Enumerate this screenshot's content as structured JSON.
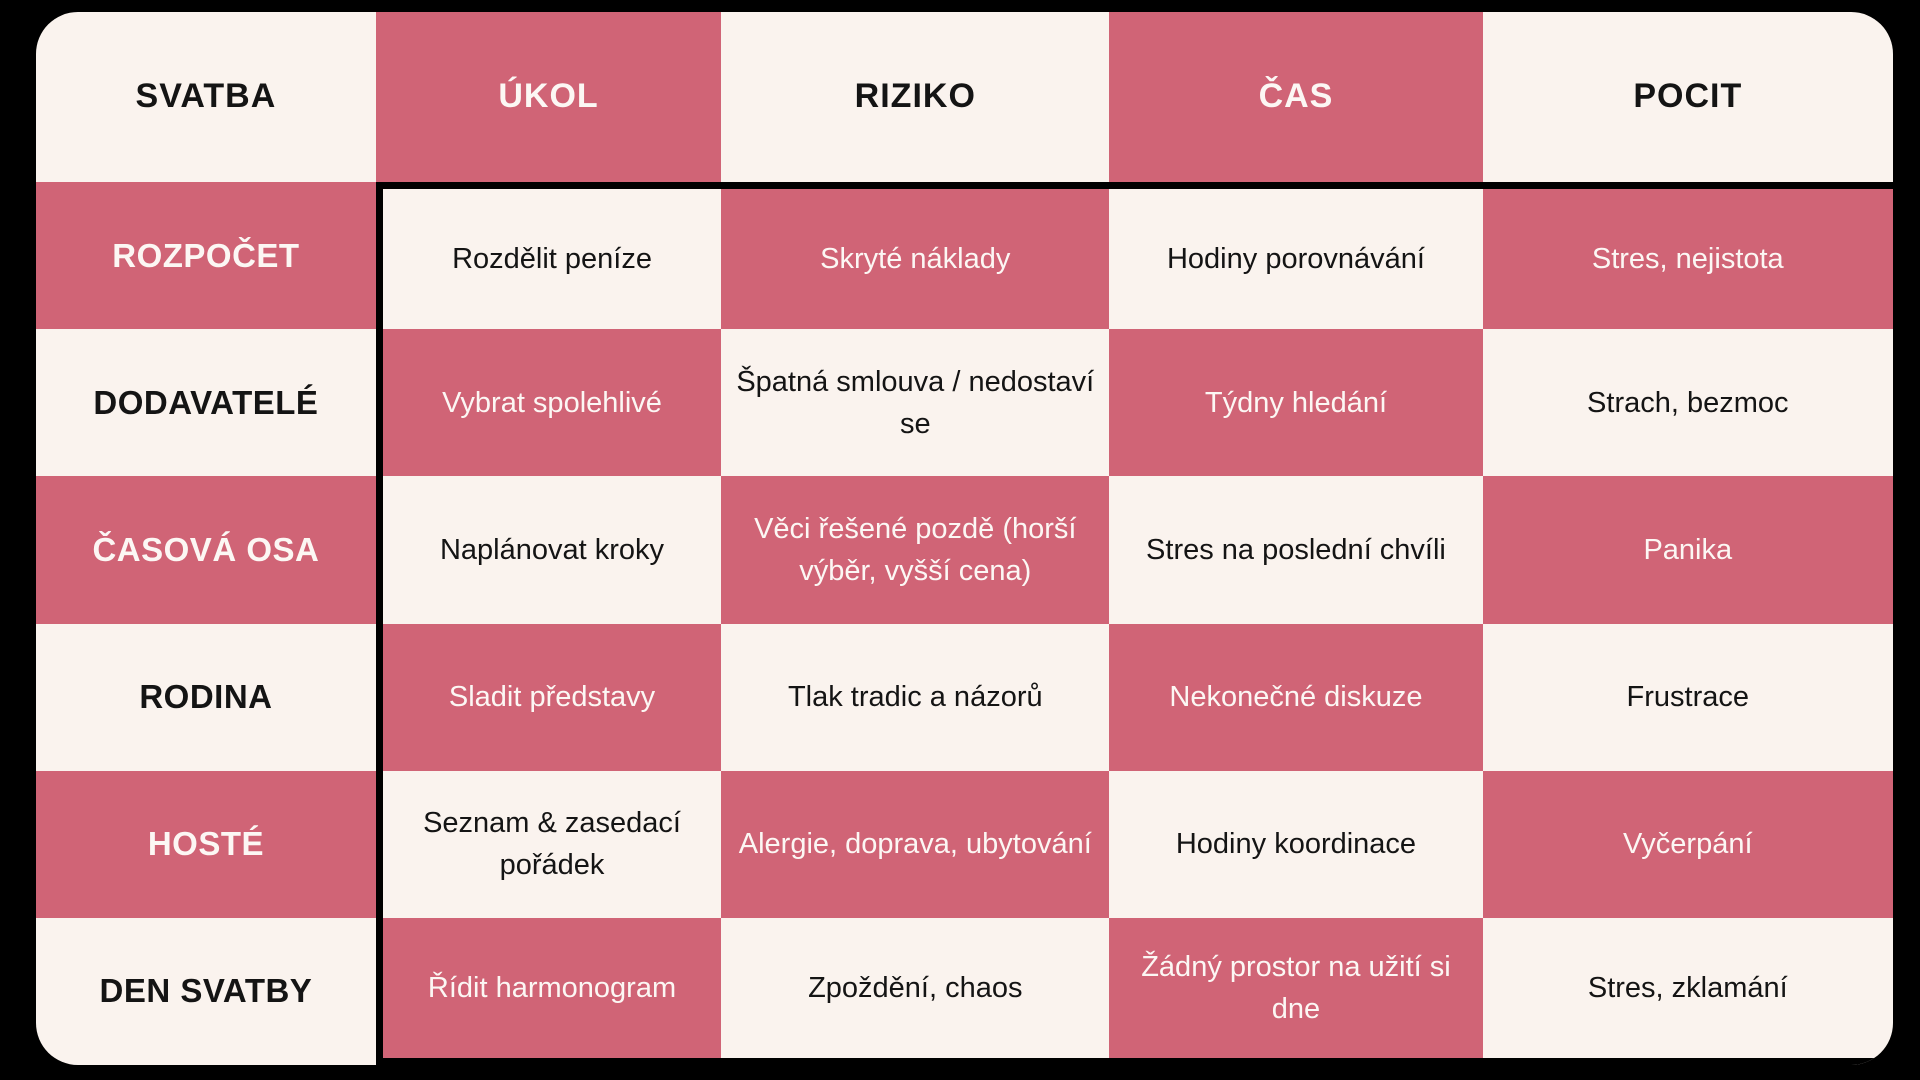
{
  "colors": {
    "page_background": "#000000",
    "rose": "#d06476",
    "cream": "#faf3ee",
    "divider_line": "#000000",
    "text_on_cream": "#141414",
    "text_on_rose": "#fcf7f4"
  },
  "chart_data": {
    "type": "table",
    "title": "",
    "columns": [
      "SVATBA",
      "ÚKOL",
      "RIZIKO",
      "ČAS",
      "POCIT"
    ],
    "rows": [
      [
        "ROZPOČET",
        "Rozdělit peníze",
        "Skryté náklady",
        "Hodiny porovnávání",
        "Stres, nejistota"
      ],
      [
        "DODAVATELÉ",
        "Vybrat spolehlivé",
        "Špatná smlouva / nedostaví se",
        "Týdny hledání",
        "Strach, bezmoc"
      ],
      [
        "ČASOVÁ OSA",
        "Naplánovat kroky",
        "Věci řešené pozdě (horší výběr, vyšší cena)",
        "Stres na poslední chvíli",
        "Panika"
      ],
      [
        "RODINA",
        "Sladit představy",
        "Tlak tradic a názorů",
        "Nekonečné diskuze",
        "Frustrace"
      ],
      [
        "HOSTÉ",
        "Seznam & zasedací pořádek",
        "Alergie, doprava, ubytování",
        "Hodiny koordinace",
        "Vyčerpání"
      ],
      [
        "DEN SVATBY",
        "Řídit harmonogram",
        "Zpoždění, chaos",
        "Žádný prostor na užití si dne",
        "Stres, zklamání"
      ]
    ],
    "layout": {
      "pattern": "checkerboard of rose and cream cells",
      "grid": "5 columns x 7 rows (header row + 6 data rows)",
      "black_frame": "thick black line below header and right of first column, around data area"
    }
  }
}
